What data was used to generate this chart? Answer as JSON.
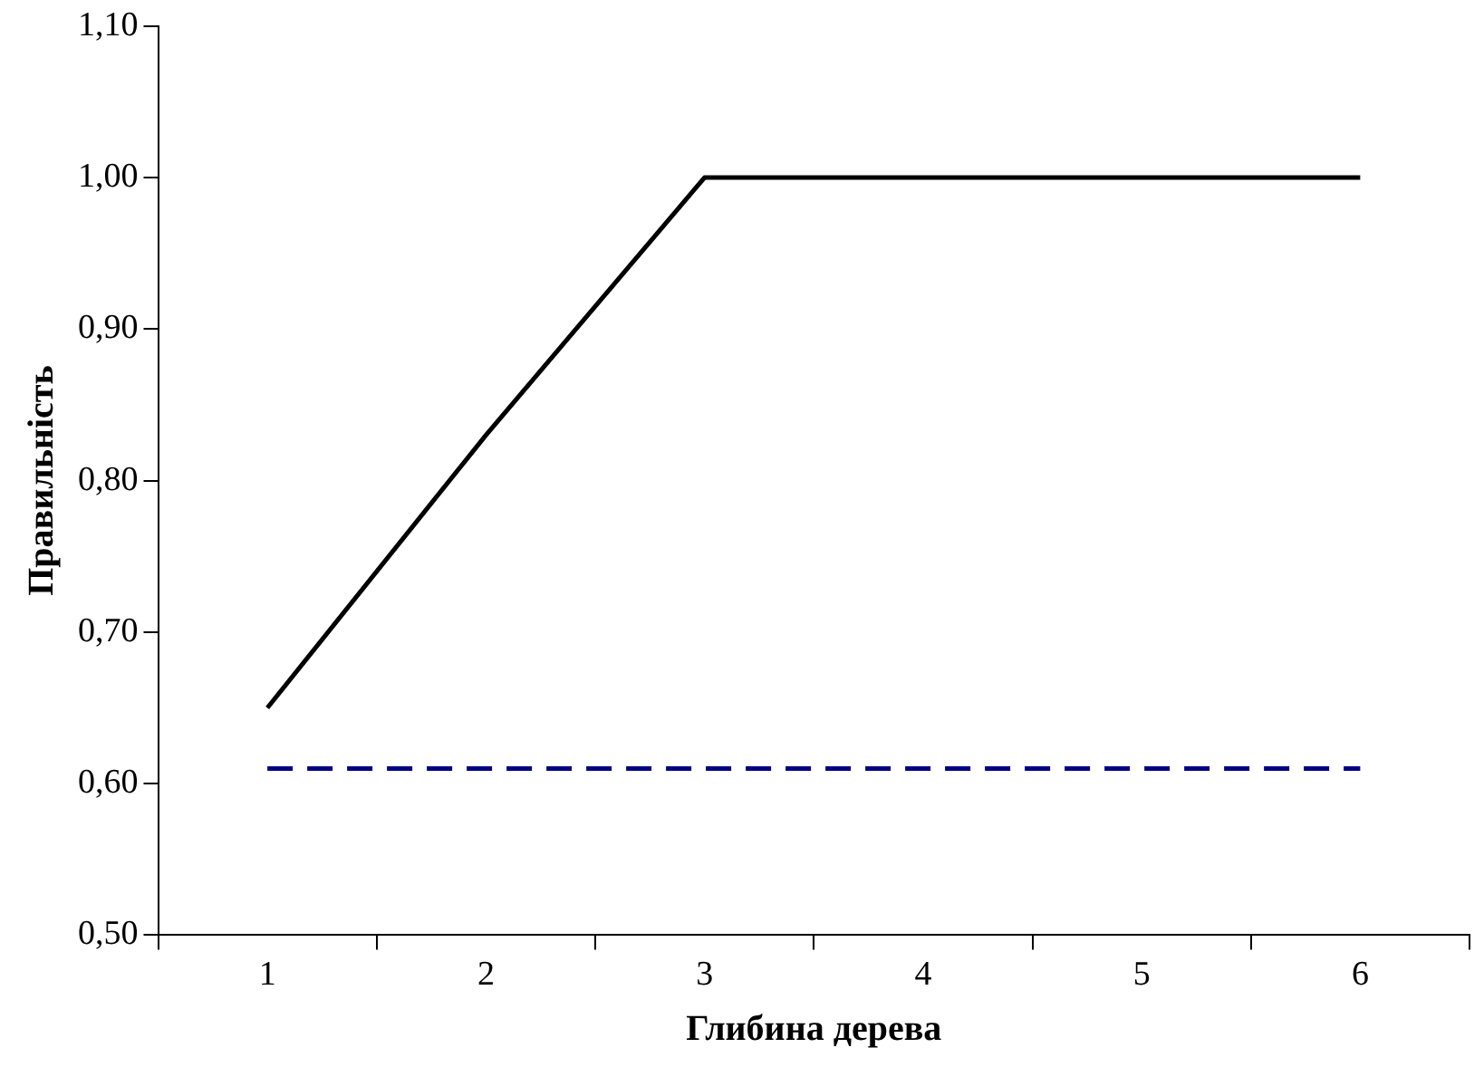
{
  "chart_data": {
    "type": "line",
    "xlabel": "Глибина дерева",
    "ylabel": "Правильність",
    "categories": [
      "1",
      "2",
      "3",
      "4",
      "5",
      "6"
    ],
    "series": [
      {
        "color": "#000000",
        "line_style": "solid",
        "values": [
          0.65,
          0.83,
          1.0,
          1.0,
          1.0,
          1.0
        ]
      },
      {
        "color": "#000080",
        "line_style": "dashed",
        "values": [
          0.61,
          0.61,
          0.61,
          0.61,
          0.61,
          0.61
        ]
      }
    ],
    "ylim": [
      0.5,
      1.1
    ],
    "yticks": [
      {
        "value": 0.5,
        "label": "0,50"
      },
      {
        "value": 0.6,
        "label": "0,60"
      },
      {
        "value": 0.7,
        "label": "0,70"
      },
      {
        "value": 0.8,
        "label": "0,80"
      },
      {
        "value": 0.9,
        "label": "0,90"
      },
      {
        "value": 1.0,
        "label": "1,00"
      },
      {
        "value": 1.1,
        "label": "1,10"
      }
    ],
    "grid": false,
    "legend": false,
    "marker": "none"
  }
}
